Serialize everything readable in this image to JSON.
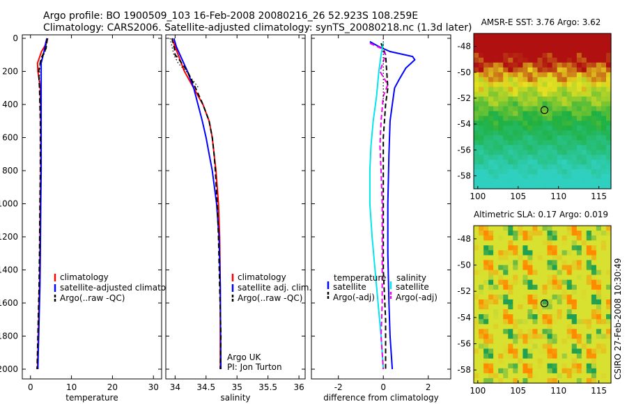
{
  "title": {
    "line1": "Argo profile: BO 1900509_103 16-Feb-2008 20080216_26 52.923S 108.259E",
    "line2": "Climatology: CARS2006. Satellite-adjusted climatology: synTS_20080218.nc (1.3d later)"
  },
  "side_credit": "CSIRO 27-Feb-2008 10:30:49",
  "chart_data": [
    {
      "type": "line",
      "panel": "temperature",
      "xlabel": "temperature",
      "ylabel": "",
      "xlim": [
        -2,
        32
      ],
      "ylim": [
        2050,
        0
      ],
      "xticks": [
        0,
        10,
        20,
        30
      ],
      "yticks": [
        0,
        200,
        400,
        600,
        800,
        1000,
        1200,
        1400,
        1600,
        1800,
        2000
      ],
      "legend_position": "lower-center",
      "series": [
        {
          "name": "climatology",
          "color": "#ff0000",
          "style": "solid",
          "points": [
            [
              4.2,
              0
            ],
            [
              3.9,
              30
            ],
            [
              2.7,
              80
            ],
            [
              1.7,
              150
            ],
            [
              1.8,
              200
            ],
            [
              2.4,
              300
            ],
            [
              2.5,
              500
            ],
            [
              2.5,
              800
            ],
            [
              2.4,
              1000
            ],
            [
              2.3,
              1300
            ],
            [
              2.2,
              1500
            ],
            [
              2.0,
              1700
            ],
            [
              1.8,
              1900
            ],
            [
              1.7,
              2000
            ]
          ]
        },
        {
          "name": "satellite-adjusted climatology",
          "color": "#0000ff",
          "style": "solid",
          "points": [
            [
              4.0,
              0
            ],
            [
              3.7,
              30
            ],
            [
              3.3,
              80
            ],
            [
              2.6,
              150
            ],
            [
              2.6,
              300
            ],
            [
              2.6,
              500
            ],
            [
              2.6,
              800
            ],
            [
              2.5,
              1000
            ],
            [
              2.4,
              1300
            ],
            [
              2.3,
              1500
            ],
            [
              2.1,
              1700
            ],
            [
              1.9,
              1900
            ],
            [
              1.8,
              2000
            ]
          ]
        },
        {
          "name": "Argo(..raw -QC)",
          "color": "#000000",
          "style": "dash",
          "points": [
            [
              4.1,
              0
            ],
            [
              3.8,
              60
            ],
            [
              2.6,
              120
            ],
            [
              2.0,
              200
            ],
            [
              2.2,
              300
            ],
            [
              2.4,
              500
            ],
            [
              2.4,
              800
            ],
            [
              2.3,
              1000
            ],
            [
              2.2,
              1300
            ],
            [
              2.1,
              1500
            ],
            [
              1.9,
              1700
            ],
            [
              1.7,
              1900
            ],
            [
              1.6,
              2000
            ]
          ]
        },
        {
          "name": "",
          "color": "#000000",
          "style": "dot",
          "points": [
            [
              4.1,
              0
            ],
            [
              3.6,
              80
            ],
            [
              2.3,
              150
            ],
            [
              2.2,
              250
            ],
            [
              2.4,
              400
            ]
          ]
        }
      ]
    },
    {
      "type": "line",
      "panel": "salinity",
      "xlabel": "salinity",
      "ylabel": "",
      "xlim": [
        33.85,
        36.1
      ],
      "ylim": [
        2050,
        0
      ],
      "xticks": [
        34,
        34.5,
        35,
        35.5,
        36
      ],
      "legend_position": "lower-center",
      "annotation": {
        "line1": "Argo UK",
        "line2": "PI: Jon Turton"
      },
      "series": [
        {
          "name": "climatology",
          "color": "#ff0000",
          "style": "solid",
          "points": [
            [
              33.95,
              0
            ],
            [
              34.0,
              50
            ],
            [
              34.05,
              100
            ],
            [
              34.15,
              200
            ],
            [
              34.3,
              300
            ],
            [
              34.45,
              400
            ],
            [
              34.55,
              500
            ],
            [
              34.6,
              600
            ],
            [
              34.63,
              700
            ],
            [
              34.66,
              800
            ],
            [
              34.7,
              1000
            ],
            [
              34.72,
              1200
            ],
            [
              34.73,
              1500
            ],
            [
              34.73,
              2000
            ]
          ]
        },
        {
          "name": "satellite adj. clim.",
          "color": "#0000ff",
          "style": "solid",
          "points": [
            [
              33.98,
              0
            ],
            [
              34.02,
              50
            ],
            [
              34.08,
              100
            ],
            [
              34.2,
              200
            ],
            [
              34.3,
              300
            ],
            [
              34.37,
              400
            ],
            [
              34.44,
              500
            ],
            [
              34.5,
              600
            ],
            [
              34.55,
              700
            ],
            [
              34.6,
              800
            ],
            [
              34.67,
              1000
            ],
            [
              34.71,
              1200
            ],
            [
              34.73,
              1500
            ],
            [
              34.74,
              2000
            ]
          ]
        },
        {
          "name": "Argo(..raw -QC)",
          "color": "#000000",
          "style": "dash",
          "points": [
            [
              33.95,
              0
            ],
            [
              34.0,
              80
            ],
            [
              34.0,
              100
            ],
            [
              34.05,
              120
            ],
            [
              34.2,
              200
            ],
            [
              34.33,
              300
            ],
            [
              34.45,
              400
            ],
            [
              34.55,
              500
            ],
            [
              34.6,
              600
            ],
            [
              34.63,
              700
            ],
            [
              34.65,
              800
            ],
            [
              34.68,
              1000
            ],
            [
              34.7,
              1200
            ],
            [
              34.72,
              1500
            ],
            [
              34.74,
              1800
            ],
            [
              34.73,
              2000
            ]
          ]
        },
        {
          "name": "",
          "color": "#000000",
          "style": "dot",
          "points": [
            [
              33.92,
              0
            ],
            [
              33.98,
              100
            ],
            [
              34.05,
              150
            ],
            [
              34.1,
              170
            ],
            [
              34.18,
              200
            ],
            [
              34.28,
              250
            ],
            [
              34.38,
              300
            ]
          ]
        }
      ]
    },
    {
      "type": "line",
      "panel": "difference",
      "xlabel": "difference from climatology",
      "ylabel": "",
      "xlim": [
        -3.2,
        3.0
      ],
      "ylim": [
        2050,
        0
      ],
      "xticks": [
        -2,
        0,
        2
      ],
      "legend_position": "lower-center",
      "legend_groups": [
        {
          "title": "temperature",
          "items": [
            {
              "name": "satellite",
              "color": "#0000ff",
              "style": "solid"
            },
            {
              "name": "Argo(-adj)",
              "color": "#000000",
              "style": "dash"
            }
          ]
        },
        {
          "title": "salinity",
          "items": [
            {
              "name": "satellite",
              "color": "#00e5ee",
              "style": "solid"
            },
            {
              "name": "Argo(-adj)",
              "color": "#ee00ee",
              "style": "dash"
            }
          ]
        }
      ],
      "series": [
        {
          "name": "satellite",
          "group": "temperature",
          "color": "#0000ff",
          "style": "solid",
          "points": [
            [
              -0.6,
              20
            ],
            [
              -0.2,
              50
            ],
            [
              0.3,
              80
            ],
            [
              1.3,
              110
            ],
            [
              1.4,
              130
            ],
            [
              1.0,
              180
            ],
            [
              0.7,
              250
            ],
            [
              0.5,
              300
            ],
            [
              0.4,
              400
            ],
            [
              0.3,
              500
            ],
            [
              0.25,
              700
            ],
            [
              0.2,
              1000
            ],
            [
              0.2,
              1300
            ],
            [
              0.25,
              1600
            ],
            [
              0.3,
              1800
            ],
            [
              0.4,
              2000
            ]
          ]
        },
        {
          "name": "Argo(-adj)",
          "group": "temperature",
          "color": "#000000",
          "style": "dash",
          "points": [
            [
              -0.1,
              30
            ],
            [
              0.1,
              100
            ],
            [
              0.2,
              300
            ],
            [
              0.1,
              400
            ],
            [
              0.0,
              600
            ],
            [
              0.0,
              1000
            ],
            [
              0.0,
              1400
            ],
            [
              0.1,
              1700
            ],
            [
              0.1,
              2000
            ]
          ]
        },
        {
          "name": "satellite",
          "group": "salinity",
          "color": "#00e5ee",
          "style": "solid",
          "points": [
            [
              0.0,
              30
            ],
            [
              -0.1,
              100
            ],
            [
              -0.2,
              200
            ],
            [
              -0.3,
              350
            ],
            [
              -0.45,
              500
            ],
            [
              -0.55,
              650
            ],
            [
              -0.6,
              800
            ],
            [
              -0.6,
              1000
            ],
            [
              -0.5,
              1200
            ],
            [
              -0.3,
              1500
            ],
            [
              -0.1,
              1800
            ],
            [
              0.0,
              2000
            ]
          ]
        },
        {
          "name": "Argo(-adj)",
          "group": "salinity",
          "color": "#ee00ee",
          "style": "dash",
          "points": [
            [
              -0.6,
              30
            ],
            [
              -0.1,
              60
            ],
            [
              0.1,
              100
            ],
            [
              -0.15,
              200
            ],
            [
              0.2,
              280
            ],
            [
              0.0,
              350
            ],
            [
              -0.1,
              500
            ],
            [
              -0.15,
              650
            ],
            [
              -0.1,
              800
            ],
            [
              -0.05,
              1000
            ],
            [
              -0.05,
              1300
            ],
            [
              -0.05,
              1600
            ],
            [
              -0.1,
              1800
            ],
            [
              0.0,
              2000
            ]
          ]
        },
        {
          "name": "",
          "group": "reference",
          "color": "#000000",
          "style": "dot",
          "points": [
            [
              0.0,
              0
            ],
            [
              0.0,
              400
            ]
          ]
        }
      ]
    },
    {
      "type": "heatmap",
      "panel": "sst_map",
      "title": "AMSR-E SST: 3.76 Argo: 3.62",
      "xlim": [
        99.5,
        116.5
      ],
      "ylim": [
        -59,
        -47
      ],
      "xticks": [
        100,
        105,
        110,
        115
      ],
      "yticks": [
        -48,
        -50,
        -52,
        -54,
        -56,
        -58
      ],
      "marker": {
        "lon": 108.26,
        "lat": -52.92
      },
      "colors": {
        "warm": "#b01010",
        "mid": "#e8e020",
        "cool": "#20b040",
        "cold": "#30d0c0"
      }
    },
    {
      "type": "heatmap",
      "panel": "sla_map",
      "title": "Altimetric SLA: 0.17 Argo: 0.019",
      "xlim": [
        99.5,
        116.5
      ],
      "ylim": [
        -59,
        -47
      ],
      "xticks": [
        100,
        105,
        110,
        115
      ],
      "yticks": [
        -48,
        -50,
        -52,
        -54,
        -56,
        -58
      ],
      "marker": {
        "lon": 108.26,
        "lat": -52.92
      },
      "colors": {
        "high": "#ff8a00",
        "mid": "#d8e030",
        "low": "#20a050"
      }
    }
  ]
}
